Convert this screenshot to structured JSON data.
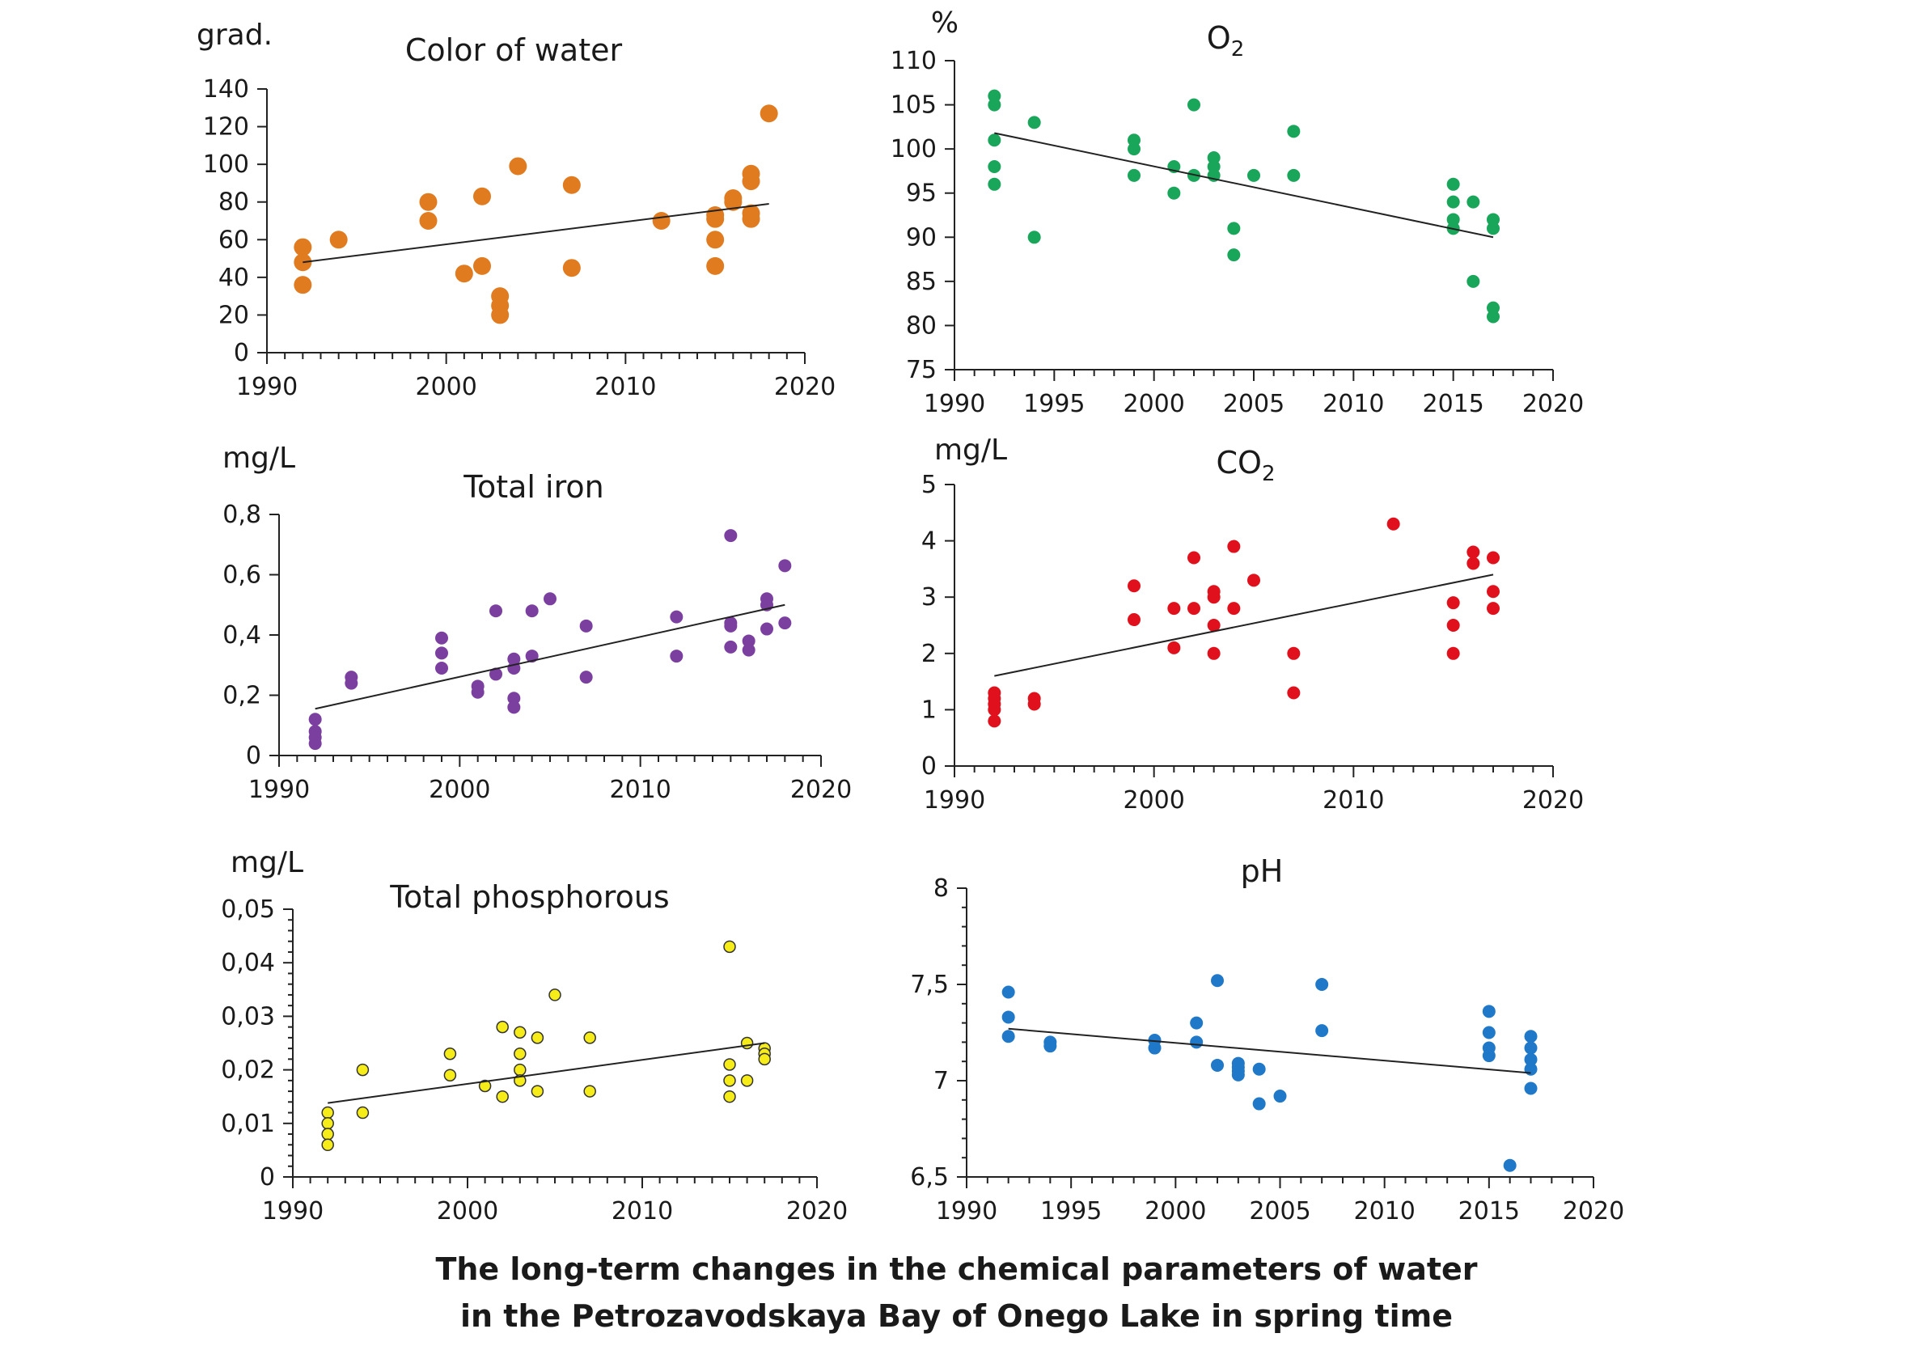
{
  "caption": {
    "line1": "The long-term changes in the chemical parameters of water",
    "line2": "in the Petrozavodskaya Bay of Onego Lake in spring time"
  },
  "chart_data": [
    {
      "id": "color",
      "type": "scatter",
      "title": "Color of water",
      "ylabel": "grad.",
      "xlim": [
        1990,
        2020
      ],
      "ylim": [
        0,
        140
      ],
      "xticks": [
        "1990",
        "2000",
        "2010",
        "2020"
      ],
      "yticks": [
        "0",
        "20",
        "40",
        "60",
        "80",
        "100",
        "120",
        "140"
      ],
      "marker_color": "#e07b20",
      "marker_stroke": "#e07b20",
      "trendline": {
        "x": [
          1992,
          2018
        ],
        "y": [
          48,
          79
        ]
      },
      "points": [
        [
          1992,
          56
        ],
        [
          1992,
          48
        ],
        [
          1992,
          36
        ],
        [
          1994,
          60
        ],
        [
          1999,
          80
        ],
        [
          1999,
          70
        ],
        [
          2001,
          42
        ],
        [
          2002,
          83
        ],
        [
          2002,
          46
        ],
        [
          2003,
          30
        ],
        [
          2003,
          25
        ],
        [
          2003,
          20
        ],
        [
          2004,
          99
        ],
        [
          2007,
          89
        ],
        [
          2007,
          45
        ],
        [
          2012,
          70
        ],
        [
          2015,
          73
        ],
        [
          2015,
          71
        ],
        [
          2015,
          60
        ],
        [
          2015,
          46
        ],
        [
          2016,
          82
        ],
        [
          2016,
          80
        ],
        [
          2017,
          95
        ],
        [
          2017,
          91
        ],
        [
          2017,
          74
        ],
        [
          2017,
          71
        ],
        [
          2018,
          127
        ]
      ]
    },
    {
      "id": "o2",
      "type": "scatter",
      "title": "O2",
      "ylabel": "%",
      "xlim": [
        1990,
        2020
      ],
      "ylim": [
        75,
        110
      ],
      "xticks": [
        "1990",
        "1995",
        "2000",
        "2005",
        "2010",
        "2015",
        "2020"
      ],
      "yticks": [
        "75",
        "80",
        "85",
        "90",
        "95",
        "100",
        "105",
        "110"
      ],
      "marker_color": "#1aa65a",
      "marker_stroke": "#1aa65a",
      "trendline": {
        "x": [
          1992,
          2017
        ],
        "y": [
          101.8,
          90
        ]
      },
      "points": [
        [
          1992,
          106
        ],
        [
          1992,
          105
        ],
        [
          1992,
          101
        ],
        [
          1992,
          98
        ],
        [
          1992,
          96
        ],
        [
          1994,
          103
        ],
        [
          1994,
          90
        ],
        [
          1999,
          101
        ],
        [
          1999,
          100
        ],
        [
          1999,
          97
        ],
        [
          2001,
          98
        ],
        [
          2001,
          95
        ],
        [
          2002,
          105
        ],
        [
          2002,
          97
        ],
        [
          2003,
          99
        ],
        [
          2003,
          98
        ],
        [
          2003,
          97
        ],
        [
          2004,
          91
        ],
        [
          2004,
          88
        ],
        [
          2005,
          97
        ],
        [
          2007,
          102
        ],
        [
          2007,
          97
        ],
        [
          2015,
          96
        ],
        [
          2015,
          94
        ],
        [
          2015,
          92
        ],
        [
          2015,
          91
        ],
        [
          2016,
          94
        ],
        [
          2016,
          85
        ],
        [
          2017,
          92
        ],
        [
          2017,
          91
        ],
        [
          2017,
          82
        ],
        [
          2017,
          81
        ]
      ]
    },
    {
      "id": "iron",
      "type": "scatter",
      "title": "Total iron",
      "ylabel": "mg/L",
      "xlim": [
        1990,
        2020
      ],
      "ylim": [
        0,
        0.8
      ],
      "xticks": [
        "1990",
        "2000",
        "2010",
        "2020"
      ],
      "yticks": [
        "0",
        "0,2",
        "0,4",
        "0,6",
        "0,8"
      ],
      "marker_color": "#7b3fa0",
      "marker_stroke": "#7b3fa0",
      "trendline": {
        "x": [
          1992,
          2018
        ],
        "y": [
          0.155,
          0.5
        ]
      },
      "points": [
        [
          1992,
          0.12
        ],
        [
          1992,
          0.08
        ],
        [
          1992,
          0.06
        ],
        [
          1992,
          0.04
        ],
        [
          1994,
          0.26
        ],
        [
          1994,
          0.24
        ],
        [
          1999,
          0.39
        ],
        [
          1999,
          0.34
        ],
        [
          1999,
          0.29
        ],
        [
          2001,
          0.23
        ],
        [
          2001,
          0.21
        ],
        [
          2002,
          0.48
        ],
        [
          2002,
          0.27
        ],
        [
          2003,
          0.32
        ],
        [
          2003,
          0.29
        ],
        [
          2003,
          0.19
        ],
        [
          2003,
          0.16
        ],
        [
          2004,
          0.48
        ],
        [
          2004,
          0.33
        ],
        [
          2005,
          0.52
        ],
        [
          2007,
          0.43
        ],
        [
          2007,
          0.26
        ],
        [
          2012,
          0.46
        ],
        [
          2012,
          0.33
        ],
        [
          2015,
          0.73
        ],
        [
          2015,
          0.44
        ],
        [
          2015,
          0.43
        ],
        [
          2015,
          0.36
        ],
        [
          2016,
          0.38
        ],
        [
          2016,
          0.35
        ],
        [
          2017,
          0.52
        ],
        [
          2017,
          0.5
        ],
        [
          2017,
          0.42
        ],
        [
          2018,
          0.63
        ],
        [
          2018,
          0.44
        ]
      ]
    },
    {
      "id": "co2",
      "type": "scatter",
      "title": "CO2",
      "ylabel": "mg/L",
      "xlim": [
        1990,
        2020
      ],
      "ylim": [
        0,
        5
      ],
      "xticks": [
        "1990",
        "2000",
        "2010",
        "2020"
      ],
      "yticks": [
        "0",
        "1",
        "2",
        "3",
        "4",
        "5"
      ],
      "marker_color": "#e0101c",
      "marker_stroke": "#e0101c",
      "trendline": {
        "x": [
          1992,
          2017
        ],
        "y": [
          1.6,
          3.4
        ]
      },
      "points": [
        [
          1992,
          1.3
        ],
        [
          1992,
          1.2
        ],
        [
          1992,
          1.1
        ],
        [
          1992,
          1.0
        ],
        [
          1992,
          0.8
        ],
        [
          1994,
          1.2
        ],
        [
          1994,
          1.1
        ],
        [
          1999,
          3.2
        ],
        [
          1999,
          2.6
        ],
        [
          2001,
          2.8
        ],
        [
          2001,
          2.1
        ],
        [
          2002,
          3.7
        ],
        [
          2002,
          2.8
        ],
        [
          2003,
          3.1
        ],
        [
          2003,
          3.0
        ],
        [
          2003,
          2.5
        ],
        [
          2003,
          2.0
        ],
        [
          2004,
          3.9
        ],
        [
          2004,
          2.8
        ],
        [
          2005,
          3.3
        ],
        [
          2007,
          2.0
        ],
        [
          2007,
          1.3
        ],
        [
          2012,
          4.3
        ],
        [
          2015,
          2.9
        ],
        [
          2015,
          2.5
        ],
        [
          2015,
          2.0
        ],
        [
          2016,
          3.8
        ],
        [
          2016,
          3.6
        ],
        [
          2017,
          3.7
        ],
        [
          2017,
          3.1
        ],
        [
          2017,
          2.8
        ]
      ]
    },
    {
      "id": "phosphorous",
      "type": "scatter",
      "title": "Total phosphorous",
      "ylabel": "mg/L",
      "xlim": [
        1990,
        2020
      ],
      "ylim": [
        0,
        0.05
      ],
      "xticks": [
        "1990",
        "2000",
        "2010",
        "2020"
      ],
      "yticks": [
        "0",
        "0,01",
        "0,02",
        "0,03",
        "0,04",
        "0,05"
      ],
      "marker_color": "#f5ec1a",
      "marker_stroke": "#333333",
      "trendline": {
        "x": [
          1992,
          2017
        ],
        "y": [
          0.0138,
          0.025
        ]
      },
      "points": [
        [
          1992,
          0.012
        ],
        [
          1992,
          0.01
        ],
        [
          1992,
          0.008
        ],
        [
          1992,
          0.006
        ],
        [
          1994,
          0.02
        ],
        [
          1994,
          0.012
        ],
        [
          1999,
          0.023
        ],
        [
          1999,
          0.019
        ],
        [
          2001,
          0.017
        ],
        [
          2002,
          0.028
        ],
        [
          2002,
          0.015
        ],
        [
          2003,
          0.027
        ],
        [
          2003,
          0.023
        ],
        [
          2003,
          0.02
        ],
        [
          2003,
          0.018
        ],
        [
          2004,
          0.026
        ],
        [
          2004,
          0.016
        ],
        [
          2005,
          0.034
        ],
        [
          2007,
          0.026
        ],
        [
          2007,
          0.016
        ],
        [
          2015,
          0.043
        ],
        [
          2015,
          0.021
        ],
        [
          2015,
          0.018
        ],
        [
          2015,
          0.015
        ],
        [
          2016,
          0.025
        ],
        [
          2016,
          0.018
        ],
        [
          2017,
          0.024
        ],
        [
          2017,
          0.023
        ],
        [
          2017,
          0.022
        ]
      ]
    },
    {
      "id": "ph",
      "type": "scatter",
      "title": "pH",
      "ylabel": "",
      "xlim": [
        1990,
        2020
      ],
      "ylim": [
        6.5,
        8
      ],
      "xticks": [
        "1990",
        "1995",
        "2000",
        "2005",
        "2010",
        "2015",
        "2020"
      ],
      "yticks": [
        "6,5",
        "7",
        "7,5",
        "8"
      ],
      "marker_color": "#1f78c8",
      "marker_stroke": "#1f78c8",
      "trendline": {
        "x": [
          1992,
          2017
        ],
        "y": [
          7.27,
          7.04
        ]
      },
      "points": [
        [
          1992,
          7.46
        ],
        [
          1992,
          7.33
        ],
        [
          1992,
          7.23
        ],
        [
          1994,
          7.2
        ],
        [
          1994,
          7.18
        ],
        [
          1999,
          7.21
        ],
        [
          1999,
          7.17
        ],
        [
          2001,
          7.3
        ],
        [
          2001,
          7.2
        ],
        [
          2002,
          7.52
        ],
        [
          2002,
          7.08
        ],
        [
          2003,
          7.09
        ],
        [
          2003,
          7.07
        ],
        [
          2003,
          7.05
        ],
        [
          2003,
          7.03
        ],
        [
          2004,
          7.06
        ],
        [
          2004,
          6.88
        ],
        [
          2005,
          6.92
        ],
        [
          2007,
          7.5
        ],
        [
          2007,
          7.26
        ],
        [
          2015,
          7.36
        ],
        [
          2015,
          7.25
        ],
        [
          2015,
          7.17
        ],
        [
          2015,
          7.13
        ],
        [
          2016,
          6.56
        ],
        [
          2017,
          7.23
        ],
        [
          2017,
          7.17
        ],
        [
          2017,
          7.11
        ],
        [
          2017,
          7.06
        ],
        [
          2017,
          6.96
        ]
      ]
    }
  ]
}
